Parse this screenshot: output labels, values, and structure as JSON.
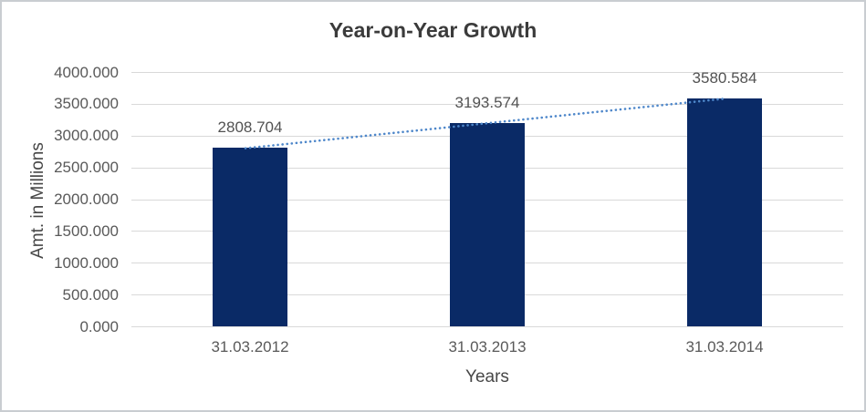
{
  "chart_data": {
    "type": "bar",
    "title": "Year-on-Year Growth",
    "xlabel": "Years",
    "ylabel": "Amt. in Millions",
    "categories": [
      "31.03.2012",
      "31.03.2013",
      "31.03.2014"
    ],
    "values": [
      2808.704,
      3193.574,
      3580.584
    ],
    "data_labels": [
      "2808.704",
      "3193.574",
      "3580.584"
    ],
    "y_ticks": [
      "4000.000",
      "3500.000",
      "3000.000",
      "2500.000",
      "2000.000",
      "1500.000",
      "1000.000",
      "500.000",
      "0.000"
    ],
    "ylim": [
      0,
      4000
    ],
    "grid": true,
    "legend": false,
    "trendline": {
      "type": "linear",
      "style": "dotted"
    },
    "colors": {
      "bar": "#0a2a66",
      "trendline": "#4e87ca",
      "gridline": "#d9d9d9",
      "tick_text": "#595959",
      "title_text": "#3b3b3b",
      "axis_title_text": "#474747",
      "data_label_text": "#525252",
      "frame_border": "#c9cdd1"
    }
  }
}
